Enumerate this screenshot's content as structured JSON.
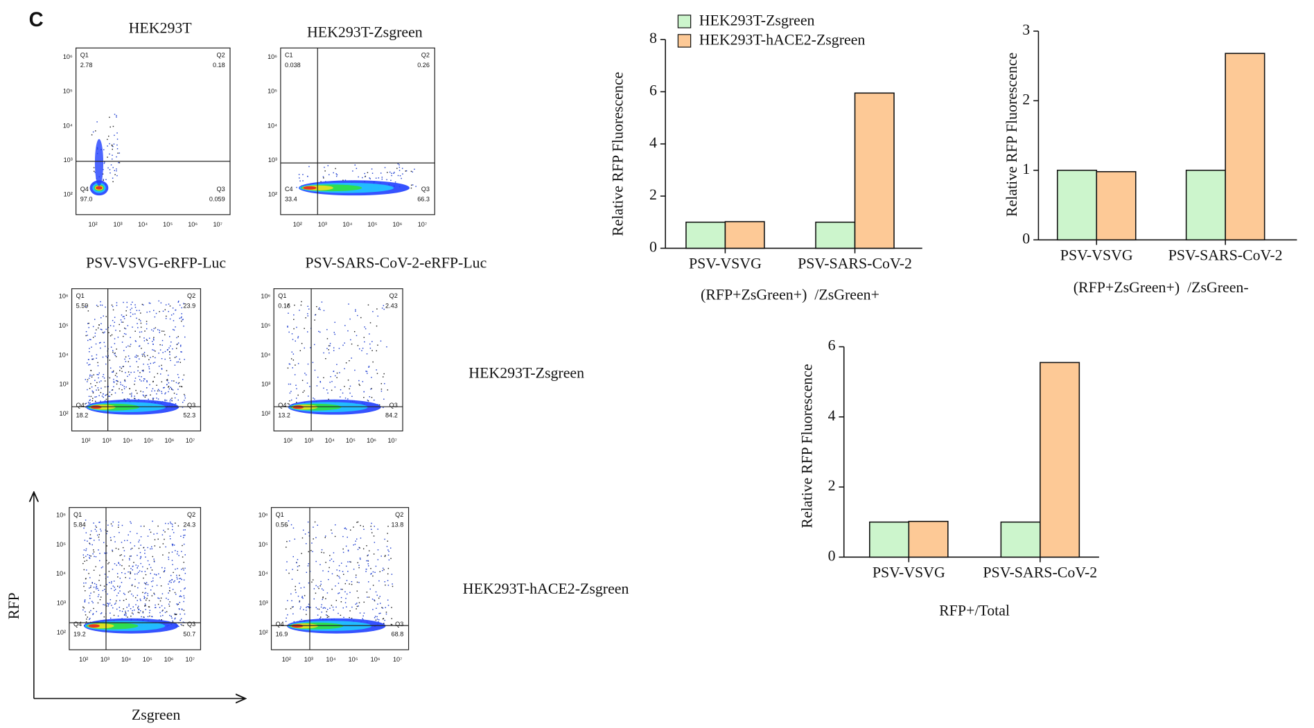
{
  "panel_label": "C",
  "flow_axis": {
    "xticks": [
      "10²",
      "10³",
      "10⁴",
      "10⁵",
      "10⁶",
      "10⁷"
    ],
    "yticks": [
      "10²",
      "10³",
      "10⁴",
      "10⁵",
      "10⁶"
    ],
    "x_label": "Zsgreen",
    "y_label": "RFP"
  },
  "column_titles": [
    [
      "HEK293T",
      "HEK293T-Zsgreen"
    ],
    [
      "PSV-VSVG-eRFP-Luc",
      "PSV-SARS-CoV-2-eRFP-Luc"
    ]
  ],
  "row_labels": [
    "HEK293T-Zsgreen",
    "HEK293T-hACE2-Zsgreen"
  ],
  "flow_plots": [
    {
      "quadrants": [
        {
          "name": "Q1",
          "value": "2.78"
        },
        {
          "name": "Q2",
          "value": "0.18"
        },
        {
          "name": "Q4",
          "value": "97.0"
        },
        {
          "name": "Q3",
          "value": "0.059"
        }
      ]
    },
    {
      "quadrants": [
        {
          "name": "C1",
          "value": "0.038"
        },
        {
          "name": "Q2",
          "value": "0.26"
        },
        {
          "name": "C4",
          "value": "33.4"
        },
        {
          "name": "Q3",
          "value": "66.3"
        }
      ]
    },
    {
      "quadrants": [
        {
          "name": "Q1",
          "value": "5.59"
        },
        {
          "name": "Q2",
          "value": "23.9"
        },
        {
          "name": "Q4",
          "value": "18.2"
        },
        {
          "name": "Q3",
          "value": "52.3"
        }
      ]
    },
    {
      "quadrants": [
        {
          "name": "Q1",
          "value": "0.16"
        },
        {
          "name": "Q2",
          "value": "2.43"
        },
        {
          "name": "Q4",
          "value": "13.2"
        },
        {
          "name": "Q3",
          "value": "84.2"
        }
      ]
    },
    {
      "quadrants": [
        {
          "name": "Q1",
          "value": "5.84"
        },
        {
          "name": "Q2",
          "value": "24.3"
        },
        {
          "name": "Q4",
          "value": "19.2"
        },
        {
          "name": "Q3",
          "value": "50.7"
        }
      ]
    },
    {
      "quadrants": [
        {
          "name": "Q1",
          "value": "0.56"
        },
        {
          "name": "Q2",
          "value": "13.8"
        },
        {
          "name": "Q4",
          "value": "16.9"
        },
        {
          "name": "Q3",
          "value": "68.8"
        }
      ]
    }
  ],
  "chart_data": [
    {
      "type": "bar",
      "y_label": "Relative RFP Fluorescence",
      "x_label": "(RFP+ZsGreen+)  /ZsGreen+",
      "categories": [
        "PSV-VSVG",
        "PSV-SARS-CoV-2"
      ],
      "legend": "top-left",
      "series": [
        {
          "name": "HEK293T-Zsgreen",
          "color": "#ccf5cc",
          "values": [
            1,
            1
          ]
        },
        {
          "name": "HEK293T-hACE2-Zsgreen",
          "color": "#fdc996",
          "values": [
            1.02,
            5.95
          ]
        }
      ],
      "ylim": [
        0,
        8
      ],
      "yticks": [
        0,
        2,
        4,
        6,
        8
      ]
    },
    {
      "type": "bar",
      "y_label": "Relative RFP Fluorescence",
      "x_label": "(RFP+ZsGreen+)  /ZsGreen-",
      "categories": [
        "PSV-VSVG",
        "PSV-SARS-CoV-2"
      ],
      "series": [
        {
          "color": "#ccf5cc",
          "values": [
            1,
            1
          ]
        },
        {
          "color": "#fdc996",
          "values": [
            0.98,
            2.68
          ]
        }
      ],
      "ylim": [
        0,
        3
      ],
      "yticks": [
        0,
        1,
        2,
        3
      ]
    },
    {
      "type": "bar",
      "y_label": "Relative RFP Fluorescence",
      "x_label": "RFP+/Total",
      "categories": [
        "PSV-VSVG",
        "PSV-SARS-CoV-2"
      ],
      "series": [
        {
          "color": "#ccf5cc",
          "values": [
            1,
            1
          ]
        },
        {
          "color": "#fdc996",
          "values": [
            1.02,
            5.55
          ]
        }
      ],
      "ylim": [
        0,
        6
      ],
      "yticks": [
        0,
        2,
        4,
        6
      ]
    }
  ]
}
